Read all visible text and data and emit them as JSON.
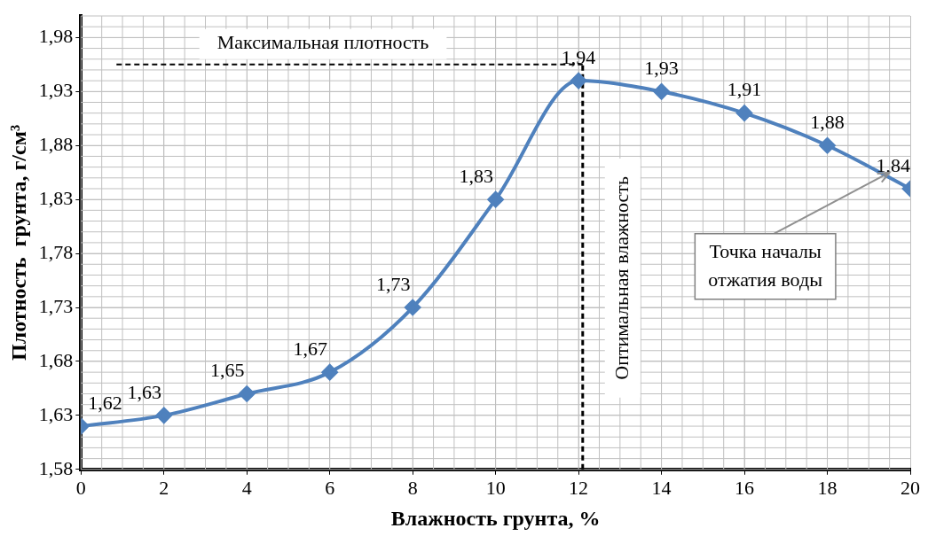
{
  "chart_data": {
    "type": "line",
    "xlabel": "Влажность грунта, %",
    "ylabel": "Плотность  грунта, г/см³",
    "x": [
      0,
      2,
      4,
      6,
      8,
      10,
      12,
      14,
      16,
      18,
      20
    ],
    "series": [
      {
        "color": "#4f81bd",
        "values": [
          1.62,
          1.63,
          1.65,
          1.67,
          1.73,
          1.83,
          1.94,
          1.93,
          1.91,
          1.88,
          1.84
        ],
        "value_labels": [
          "1,62",
          "1,63",
          "1,65",
          "1,67",
          "1,73",
          "1,83",
          "1,94",
          "1,93",
          "1,91",
          "1,88",
          "1,84"
        ]
      }
    ],
    "xlim": [
      0,
      20
    ],
    "xticks": [
      0,
      2,
      4,
      6,
      8,
      10,
      12,
      14,
      16,
      18,
      20
    ],
    "ylim": [
      1.58,
      2.0
    ],
    "yticks": [
      {
        "value": 1.58,
        "label": "1,58"
      },
      {
        "value": 1.63,
        "label": "1,63"
      },
      {
        "value": 1.68,
        "label": "1,68"
      },
      {
        "value": 1.73,
        "label": "1,73"
      },
      {
        "value": 1.78,
        "label": "1,78"
      },
      {
        "value": 1.83,
        "label": "1,83"
      },
      {
        "value": 1.88,
        "label": "1,88"
      },
      {
        "value": 1.93,
        "label": "1,93"
      },
      {
        "value": 1.98,
        "label": "1,98"
      }
    ],
    "ref_lines": [
      {
        "axis": "y",
        "value": 1.955,
        "label": "Максимальная плотность",
        "line_style": "dashed",
        "color": "#000000"
      },
      {
        "axis": "x",
        "value": 12.1,
        "label": "Оптимальная влажность",
        "line_style": "dashed",
        "color": "#000000"
      }
    ],
    "annotations": [
      {
        "text": "Точка началы отжатия воды",
        "x": 19.5,
        "y": 1.855
      }
    ],
    "grid": true,
    "legend": false,
    "marker": "diamond",
    "line_style": "solid"
  }
}
